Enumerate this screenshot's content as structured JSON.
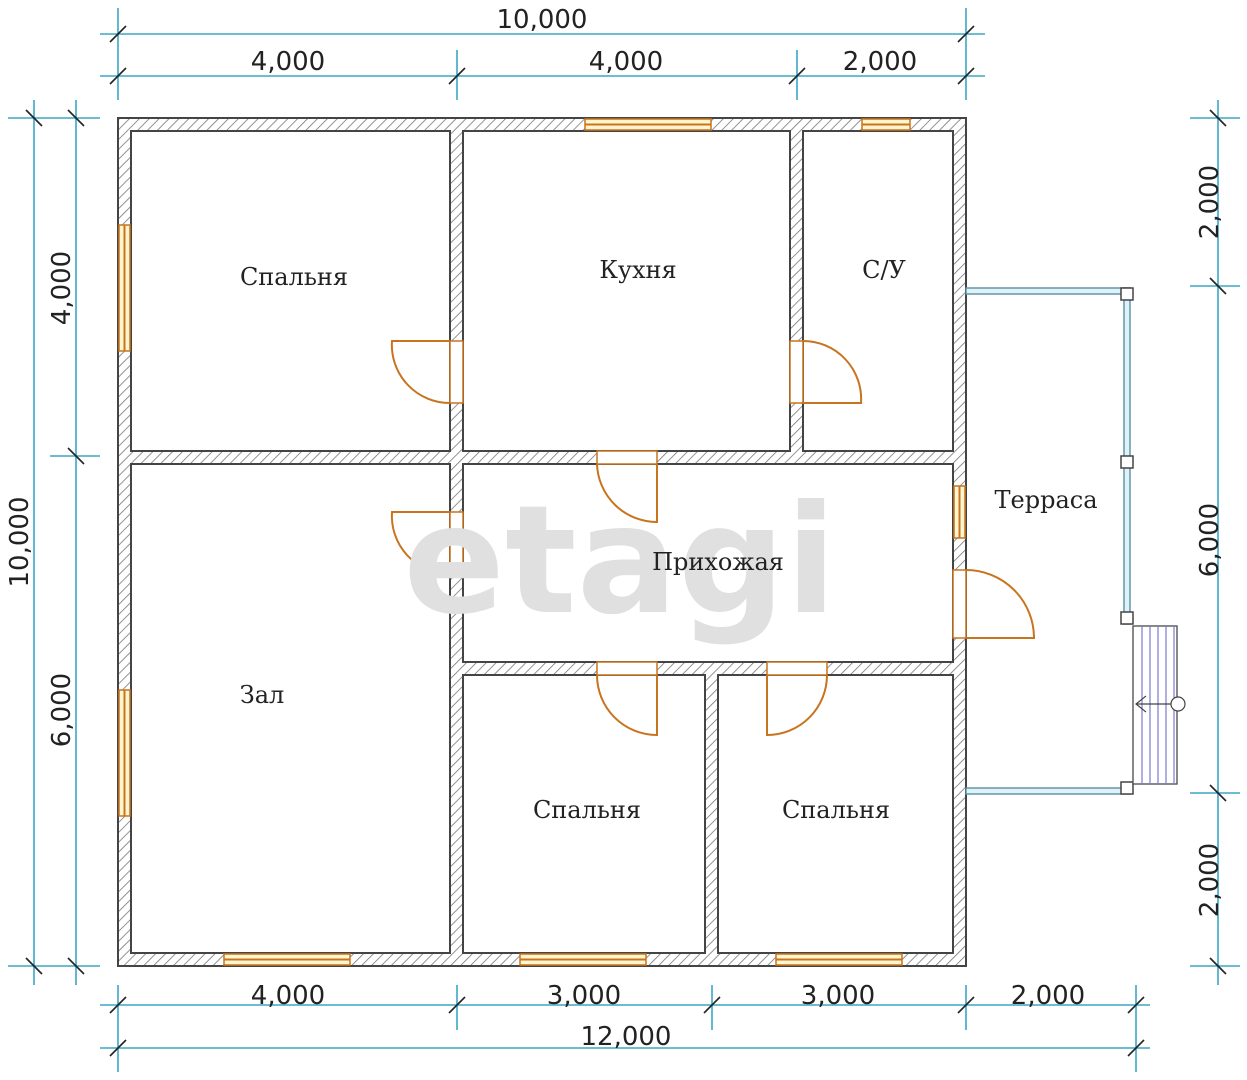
{
  "watermark": "etagi",
  "rooms": {
    "bedroom_nw": "Спальня",
    "kitchen": "Кухня",
    "bathroom": "С/У",
    "terrace": "Терраса",
    "hallway": "Прихожая",
    "living": "Зал",
    "bedroom_s1": "Спальня",
    "bedroom_s2": "Спальня"
  },
  "dimensions": {
    "top_total": "10,000",
    "top": [
      "4,000",
      "4,000",
      "2,000"
    ],
    "bottom": [
      "4,000",
      "3,000",
      "3,000",
      "2,000"
    ],
    "bottom_total": "12,000",
    "left_total": "10,000",
    "left": [
      "4,000",
      "6,000"
    ],
    "right": [
      "2,000",
      "6,000",
      "2,000"
    ]
  },
  "colors": {
    "wall": "#444444",
    "hatch": "#777777",
    "dimension_line": "#3aa7c4",
    "door": "#c8741e",
    "window_fill": "#fff6cf",
    "terrace": "#5a8fa8",
    "watermark": "#e0e0e0"
  }
}
